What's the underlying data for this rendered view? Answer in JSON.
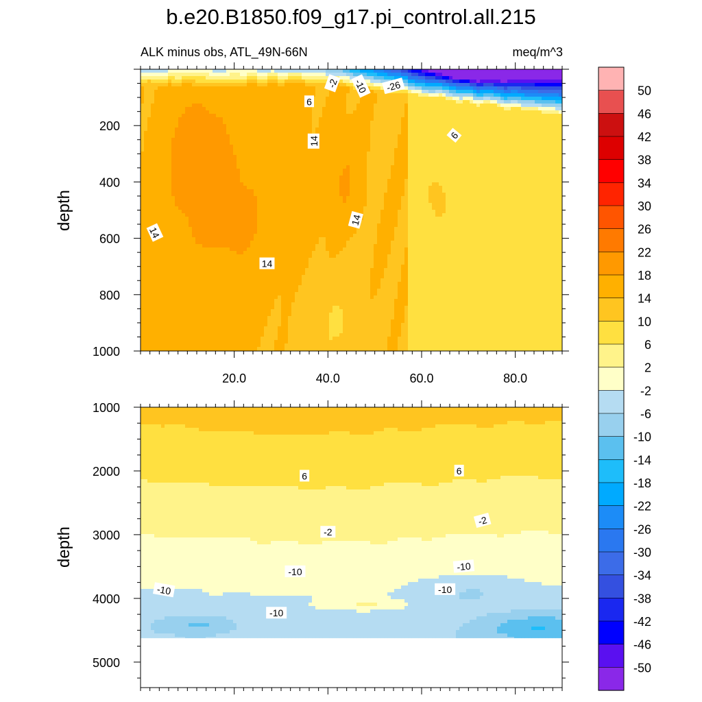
{
  "chart_data": {
    "type": "contour",
    "title": "b.e20.B1850.f09_g17.pi_control.all.215",
    "left_string": "ALK minus obs, ATL_49N-66N",
    "right_string": "meq/m^3",
    "xlabel": "",
    "x_ticks": [
      "20.0",
      "40.0",
      "60.0",
      "80.0"
    ],
    "xlim": [
      0,
      90
    ],
    "panels": [
      {
        "name": "upper",
        "ylabel": "depth",
        "ylim": [
          0,
          1000
        ],
        "y_ticks": [
          "200",
          "400",
          "600",
          "800",
          "1000"
        ],
        "contour_labels": [
          {
            "text": "-2",
            "x": 41,
            "y": 50,
            "angle": -70
          },
          {
            "text": "-10",
            "x": 47,
            "y": 60,
            "angle": 65
          },
          {
            "text": "-26",
            "x": 54,
            "y": 60,
            "angle": -15
          },
          {
            "text": "6",
            "x": 36,
            "y": 115,
            "angle": 0
          },
          {
            "text": "6",
            "x": 67,
            "y": 235,
            "angle": -50
          },
          {
            "text": "14",
            "x": 37,
            "y": 255,
            "angle": -90
          },
          {
            "text": "14",
            "x": 46,
            "y": 535,
            "angle": -75
          },
          {
            "text": "14",
            "x": 3,
            "y": 580,
            "angle": 65
          },
          {
            "text": "14",
            "x": 27,
            "y": 690,
            "angle": 0
          }
        ]
      },
      {
        "name": "lower",
        "ylabel": "depth",
        "ylim": [
          1000,
          5400
        ],
        "y_ticks": [
          "1000",
          "2000",
          "3000",
          "4000",
          "5000"
        ],
        "bottom_depth": 4620,
        "contour_labels": [
          {
            "text": "6",
            "x": 35,
            "y": 2080,
            "angle": 0
          },
          {
            "text": "6",
            "x": 68,
            "y": 2000,
            "angle": 0
          },
          {
            "text": "-2",
            "x": 40,
            "y": 2960,
            "angle": 0
          },
          {
            "text": "-2",
            "x": 73,
            "y": 2780,
            "angle": -15
          },
          {
            "text": "-10",
            "x": 33,
            "y": 3580,
            "angle": 0
          },
          {
            "text": "-10",
            "x": 69,
            "y": 3500,
            "angle": -5
          },
          {
            "text": "-10",
            "x": 5,
            "y": 3870,
            "angle": 10
          },
          {
            "text": "-10",
            "x": 65,
            "y": 3860,
            "angle": 0
          },
          {
            "text": "-10",
            "x": 29,
            "y": 4230,
            "angle": 0
          }
        ]
      }
    ],
    "colorbar": {
      "labels": [
        "50",
        "46",
        "42",
        "38",
        "34",
        "30",
        "26",
        "22",
        "18",
        "14",
        "10",
        "6",
        "2",
        "-2",
        "-6",
        "-10",
        "-14",
        "-18",
        "-22",
        "-26",
        "-30",
        "-34",
        "-38",
        "-42",
        "-46",
        "-50"
      ],
      "colors": [
        "#ffb3b3",
        "#e85050",
        "#cc1010",
        "#dd0000",
        "#ff0000",
        "#ff2400",
        "#ff5500",
        "#ff7a00",
        "#ff9900",
        "#ffb000",
        "#ffc520",
        "#ffe040",
        "#fff38a",
        "#ffffc8",
        "#b5dcf2",
        "#98d0ee",
        "#5bc0ef",
        "#1ebdfa",
        "#00aaff",
        "#1c8cf7",
        "#2a78f0",
        "#3c6ce8",
        "#3450e0",
        "#1a28f0",
        "#0000ff",
        "#5a10f0",
        "#8a28e8"
      ]
    }
  }
}
